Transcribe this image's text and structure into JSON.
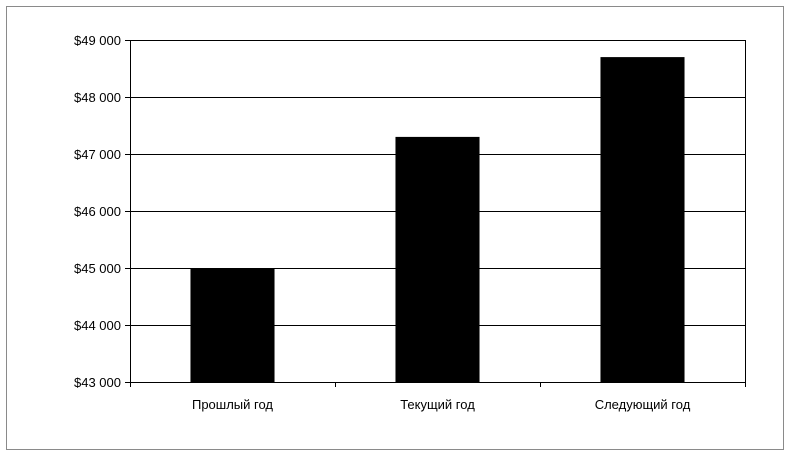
{
  "chart_data": {
    "type": "bar",
    "title": "",
    "xlabel": "",
    "ylabel": "",
    "categories": [
      "Прошлый год",
      "Текущий год",
      "Следующий год"
    ],
    "values": [
      45000,
      47300,
      48700
    ],
    "ylim": [
      43000,
      49000
    ],
    "yticks": [
      43000,
      44000,
      45000,
      46000,
      47000,
      48000,
      49000
    ],
    "ytick_labels": [
      "$43 000",
      "$44 000",
      "$45 000",
      "$46 000",
      "$47 000",
      "$48 000",
      "$49 000"
    ],
    "grid": true,
    "legend": "none",
    "bar_color": "#000000",
    "gridline_color": "#000000"
  }
}
